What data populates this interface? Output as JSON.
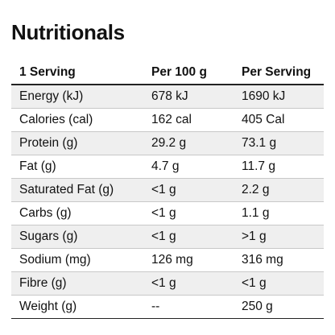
{
  "title": "Nutritionals",
  "table": {
    "headers": [
      "1 Serving",
      "Per 100 g",
      "Per Serving"
    ],
    "rows": [
      [
        "Energy (kJ)",
        "678 kJ",
        "1690 kJ"
      ],
      [
        "Calories (cal)",
        "162 cal",
        "405 Cal"
      ],
      [
        "Protein (g)",
        "29.2 g",
        "73.1 g"
      ],
      [
        "Fat (g)",
        "4.7 g",
        "11.7 g"
      ],
      [
        "Saturated Fat (g)",
        "<1 g",
        "2.2 g"
      ],
      [
        "Carbs (g)",
        "<1 g",
        "1.1 g"
      ],
      [
        "Sugars (g)",
        "<1 g",
        ">1 g"
      ],
      [
        "Sodium (mg)",
        "126 mg",
        "316 mg"
      ],
      [
        "Fibre (g)",
        "<1 g",
        "<1 g"
      ],
      [
        "Weight (g)",
        "--",
        "250 g"
      ]
    ]
  }
}
